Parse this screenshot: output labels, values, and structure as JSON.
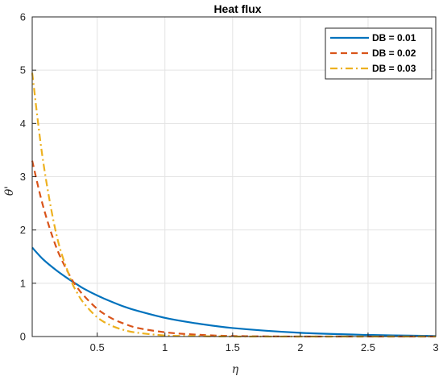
{
  "chart_data": {
    "type": "line",
    "title": "Heat flux",
    "xlabel": "η",
    "ylabel": "θ'",
    "xlim": [
      0.02,
      3
    ],
    "ylim": [
      0,
      6
    ],
    "xticks": [
      0.5,
      1,
      1.5,
      2,
      2.5,
      3
    ],
    "xtick_labels": [
      "0.5",
      "1",
      "1.5",
      "2",
      "2.5",
      "3"
    ],
    "yticks": [
      0,
      1,
      2,
      3,
      4,
      5,
      6
    ],
    "ytick_labels": [
      "0",
      "1",
      "2",
      "3",
      "4",
      "5",
      "6"
    ],
    "grid": true,
    "legend_position": "top-right",
    "x": [
      0.02,
      0.1,
      0.2,
      0.3,
      0.35,
      0.4,
      0.5,
      0.6,
      0.7,
      0.8,
      1.0,
      1.2,
      1.5,
      2.0,
      2.5,
      3.0
    ],
    "series": [
      {
        "name": "DB = 0.01",
        "color": "#0072BD",
        "dash": "solid",
        "values": [
          1.67,
          1.45,
          1.24,
          1.06,
          0.98,
          0.9,
          0.77,
          0.66,
          0.56,
          0.48,
          0.35,
          0.26,
          0.16,
          0.07,
          0.03,
          0.01
        ]
      },
      {
        "name": "DB = 0.02",
        "color": "#D95319",
        "dash": "dashed",
        "values": [
          3.3,
          2.45,
          1.66,
          1.13,
          0.93,
          0.77,
          0.52,
          0.35,
          0.24,
          0.16,
          0.08,
          0.04,
          0.01,
          0.0,
          0.0,
          0.0
        ]
      },
      {
        "name": "DB = 0.03",
        "color": "#EDB120",
        "dash": "dashdot",
        "values": [
          4.95,
          3.3,
          1.9,
          1.1,
          0.83,
          0.63,
          0.36,
          0.21,
          0.12,
          0.07,
          0.02,
          0.01,
          0.0,
          0.0,
          0.0,
          0.0
        ]
      }
    ]
  }
}
